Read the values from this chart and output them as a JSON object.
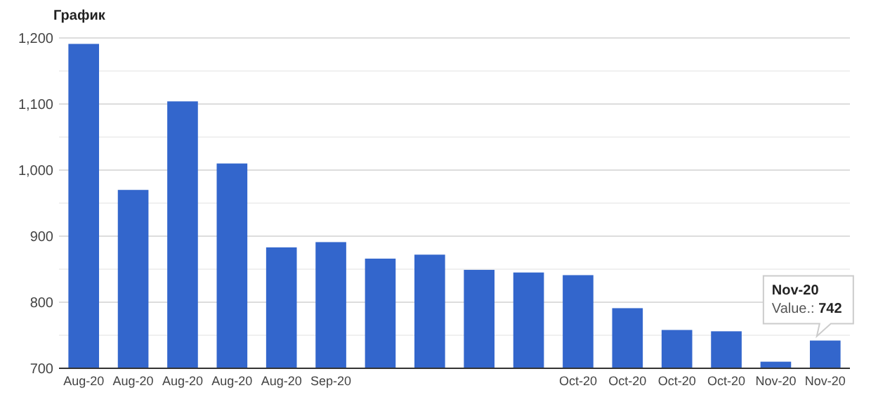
{
  "chart_data": {
    "type": "bar",
    "title": "График",
    "categories": [
      "Aug-20",
      "Aug-20",
      "Aug-20",
      "Aug-20",
      "Aug-20",
      "Sep-20",
      null,
      null,
      null,
      null,
      "Oct-20",
      "Oct-20",
      "Oct-20",
      "Oct-20",
      "Nov-20",
      "Nov-20"
    ],
    "values": [
      1191,
      970,
      1104,
      1010,
      883,
      891,
      866,
      872,
      849,
      845,
      841,
      791,
      758,
      756,
      710,
      742
    ],
    "color": "#3366cc",
    "ylim": [
      700,
      1200
    ],
    "yticks": [
      700,
      {
        "value": 750,
        "label": null
      },
      800,
      {
        "value": 850,
        "label": null
      },
      900,
      {
        "value": 950,
        "label": null
      },
      {
        "value": 1000,
        "label": "1,000"
      },
      {
        "value": 1050,
        "label": null
      },
      {
        "value": 1100,
        "label": "1,100"
      },
      {
        "value": 1150,
        "label": null
      },
      {
        "value": 1200,
        "label": "1,200"
      }
    ],
    "grid": true,
    "annotations": [
      "Nov-20\nValue.: 742"
    ]
  }
}
